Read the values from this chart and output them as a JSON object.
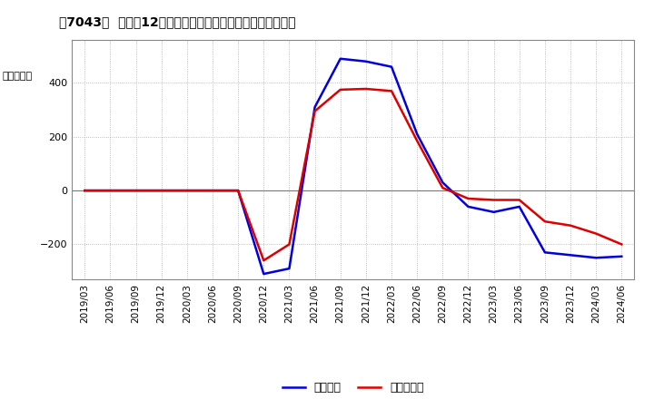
{
  "title": "［7043］  利益の12か月移動合計の対前年同期増減額の推移",
  "ylabel": "（百万円）",
  "ylim": [
    -330,
    560
  ],
  "yticks": [
    -200,
    0,
    200,
    400
  ],
  "legend_labels": [
    "経常利益",
    "当期純利益"
  ],
  "line_colors": [
    "#0000dd",
    "#dd0000"
  ],
  "background_color": "#ffffff",
  "plot_bg_color": "#ffffff",
  "grid_color": "#aaaaaa",
  "dates": [
    "2019/03",
    "2019/06",
    "2019/09",
    "2019/12",
    "2020/03",
    "2020/06",
    "2020/09",
    "2020/12",
    "2021/03",
    "2021/06",
    "2021/09",
    "2021/12",
    "2022/03",
    "2022/06",
    "2022/09",
    "2022/12",
    "2023/03",
    "2023/06",
    "2023/09",
    "2023/12",
    "2024/03",
    "2024/06"
  ],
  "ordinary_profit": [
    0,
    0,
    0,
    0,
    0,
    0,
    0,
    -310,
    -290,
    310,
    490,
    480,
    460,
    210,
    30,
    -60,
    -80,
    -60,
    -230,
    -240,
    -250,
    -245
  ],
  "net_profit": [
    0,
    0,
    0,
    0,
    0,
    0,
    0,
    -260,
    -200,
    295,
    375,
    378,
    370,
    185,
    10,
    -30,
    -35,
    -35,
    -115,
    -130,
    -160,
    -200
  ]
}
